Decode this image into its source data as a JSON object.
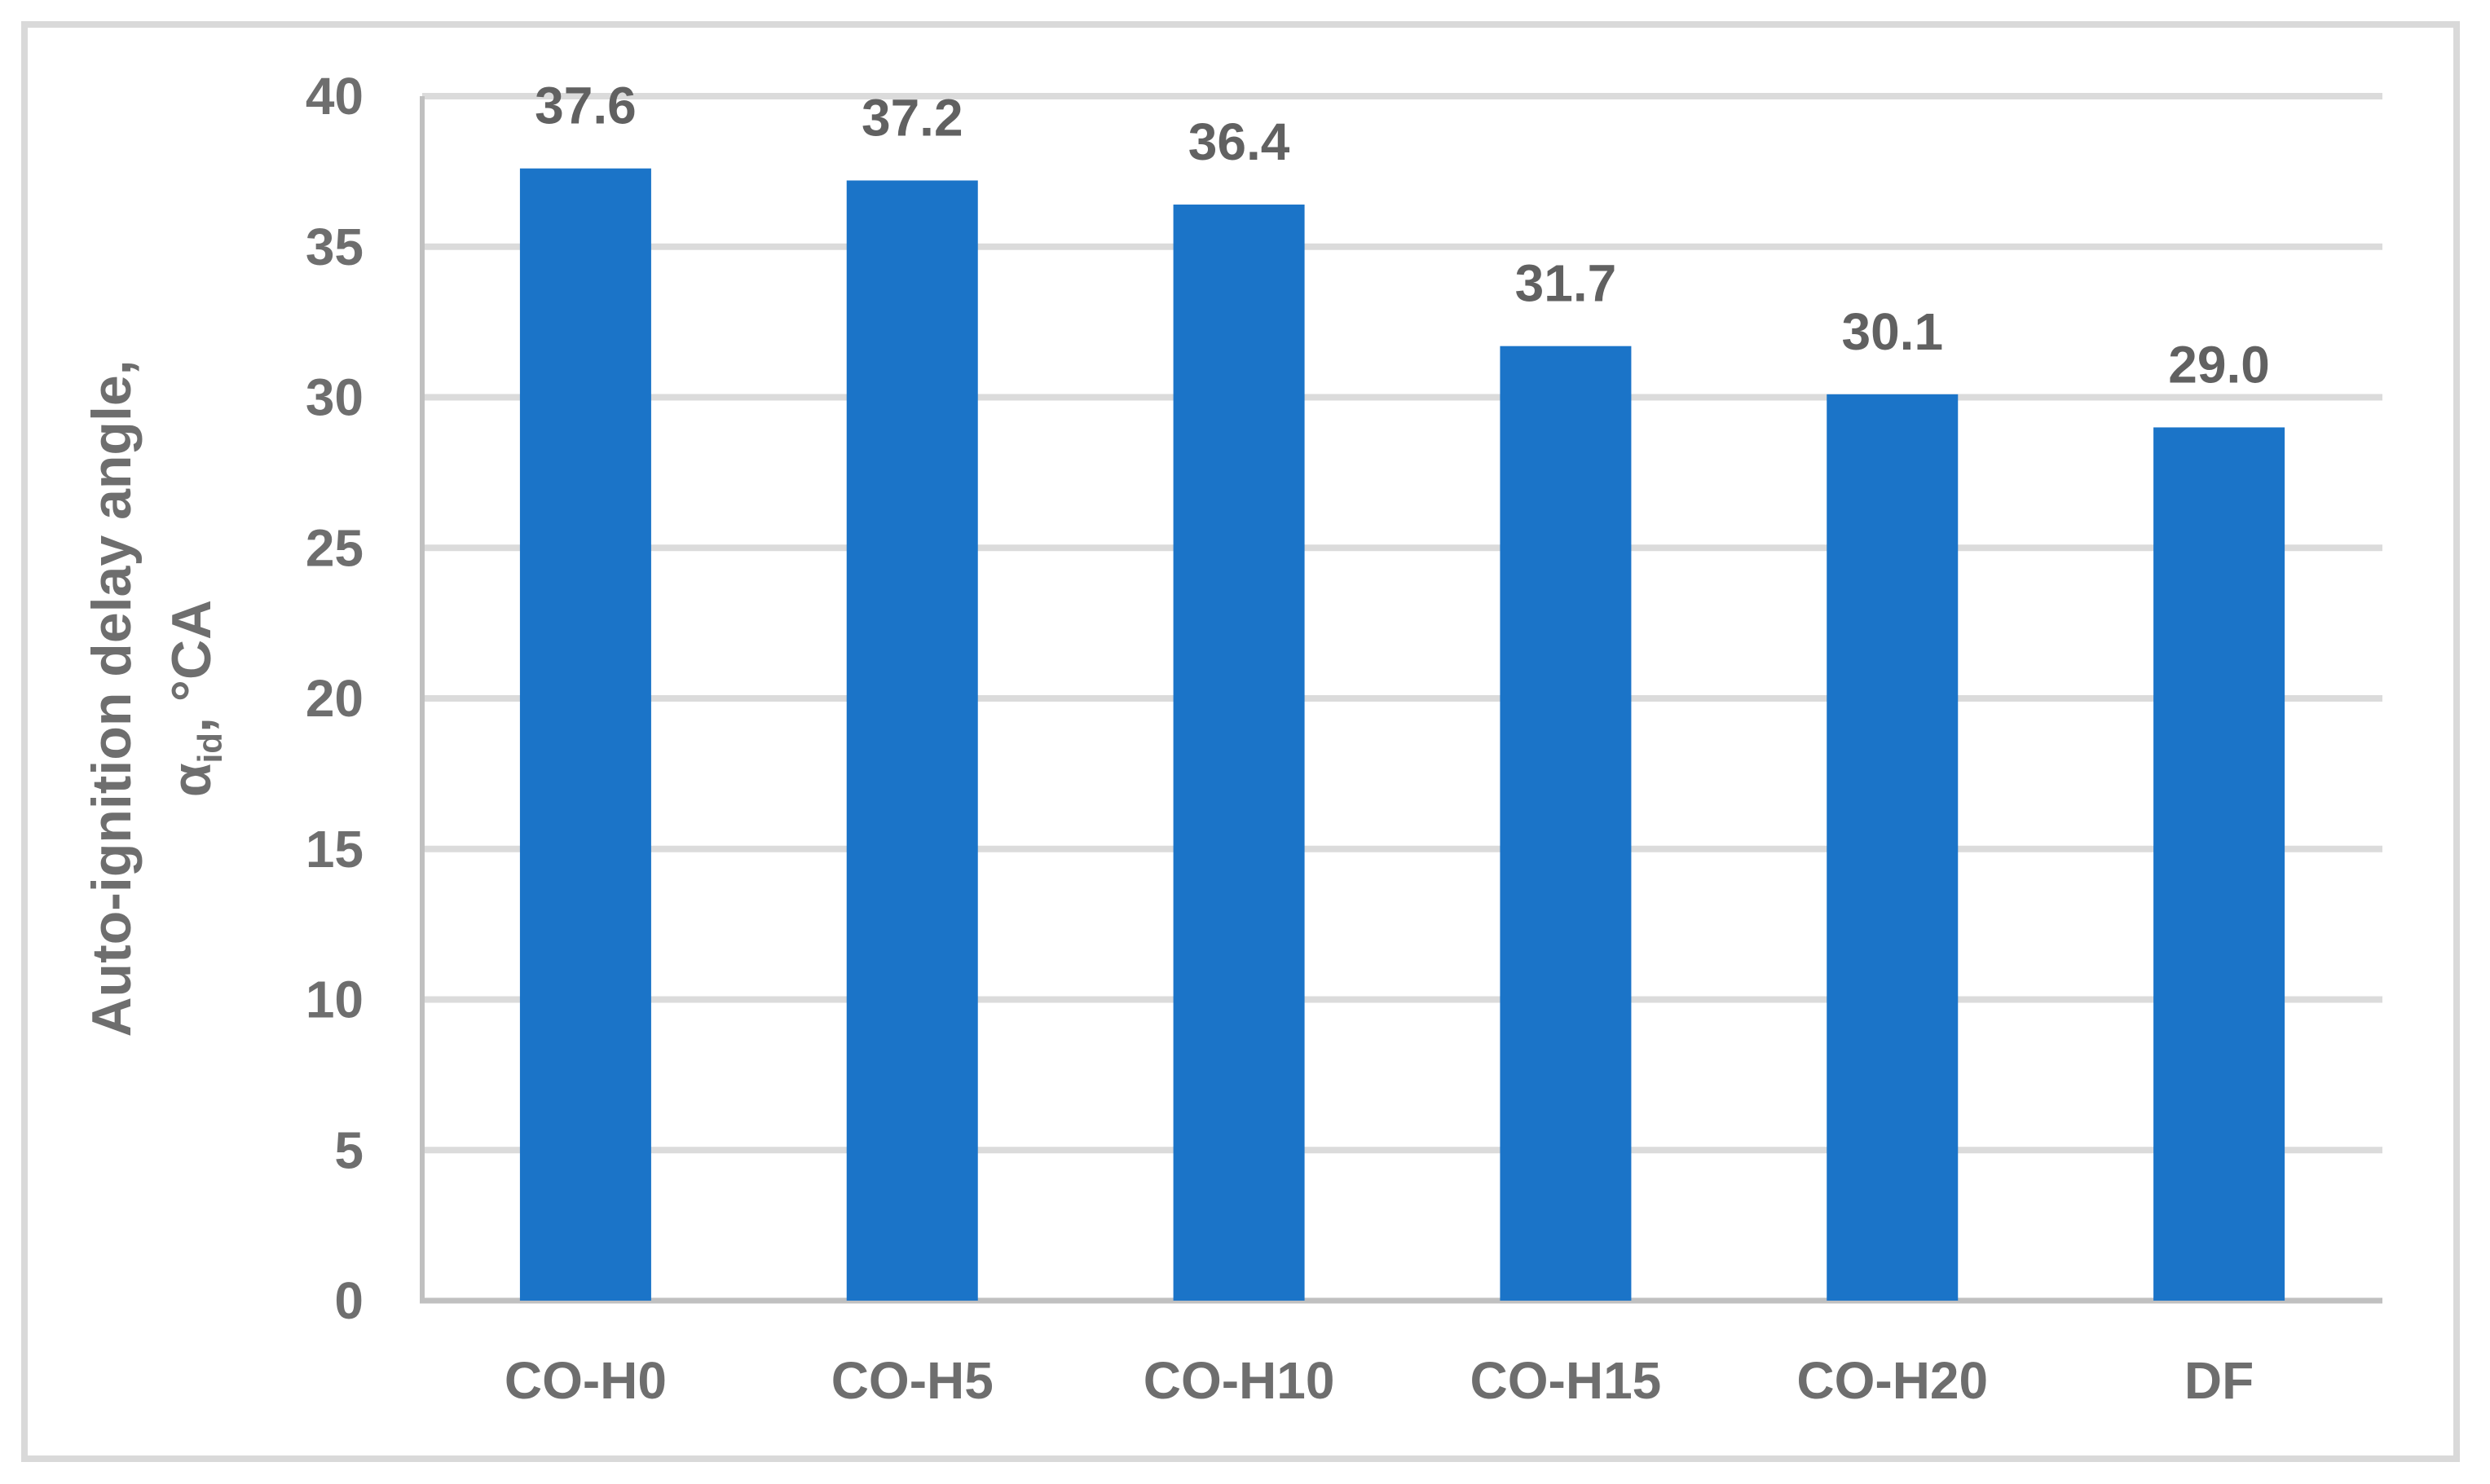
{
  "figure": {
    "frame_border_color": "#D9D9D9",
    "background_color": "#FFFFFF"
  },
  "chart_data": {
    "type": "bar",
    "title": "",
    "xlabel": "",
    "ylabel_line1": "Auto-ignition delay angle,",
    "ylabel_line2_prefix": "α",
    "ylabel_line2_subscript": "id",
    "ylabel_line2_suffix": ", °CA",
    "categories": [
      "CO-H0",
      "CO-H5",
      "CO-H10",
      "CO-H15",
      "CO-H20",
      "DF"
    ],
    "values": [
      37.6,
      37.2,
      36.4,
      31.7,
      30.1,
      29.0
    ],
    "data_labels": [
      "37.6",
      "37.2",
      "36.4",
      "31.7",
      "30.1",
      "29.0"
    ],
    "ylim": [
      0,
      40
    ],
    "ytick_step": 5,
    "ytick_labels": [
      "0",
      "5",
      "10",
      "15",
      "20",
      "25",
      "30",
      "35",
      "40"
    ],
    "grid": "horizontal",
    "legend": "none",
    "colors": {
      "bar": "#1B74C8",
      "text": "#6E6E6E",
      "data_label_text": "#616161",
      "gridline": "#DBDBDB",
      "axis_line": "#C0C0C0"
    }
  }
}
